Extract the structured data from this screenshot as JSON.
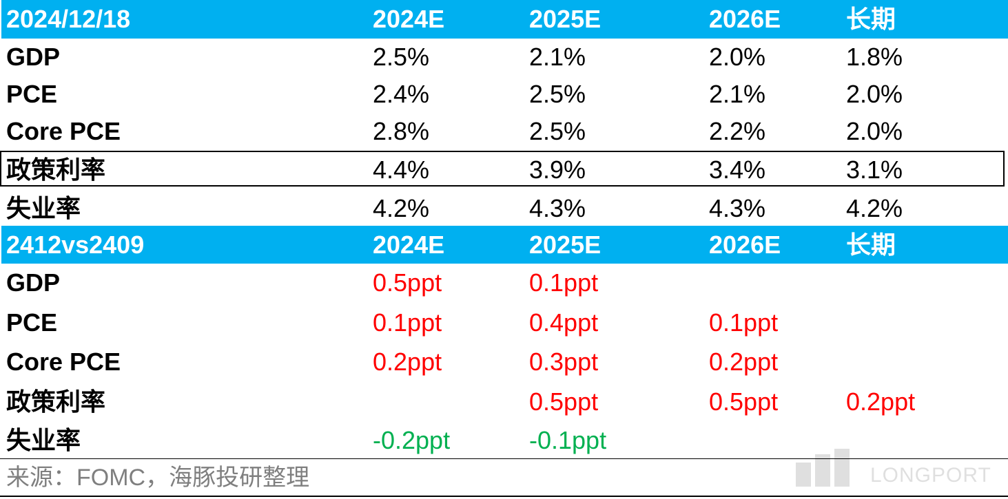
{
  "table1": {
    "header": [
      "2024/12/18",
      "2024E",
      "2025E",
      "2026E",
      "长期"
    ],
    "rows": [
      {
        "label": "GDP",
        "values": [
          "2.5%",
          "2.1%",
          "2.0%",
          "1.8%"
        ]
      },
      {
        "label": "PCE",
        "values": [
          "2.4%",
          "2.5%",
          "2.1%",
          "2.0%"
        ]
      },
      {
        "label": "Core PCE",
        "values": [
          "2.8%",
          "2.5%",
          "2.2%",
          "2.0%"
        ]
      },
      {
        "label": "政策利率",
        "values": [
          "4.4%",
          "3.9%",
          "3.4%",
          "3.1%"
        ]
      },
      {
        "label": "失业率",
        "values": [
          "4.2%",
          "4.3%",
          "4.3%",
          "4.2%"
        ]
      }
    ]
  },
  "table2": {
    "header": [
      "2412vs2409",
      "2024E",
      "2025E",
      "2026E",
      "长期"
    ],
    "rows": [
      {
        "label": "GDP",
        "values": [
          "0.5ppt",
          "0.1ppt",
          "",
          ""
        ]
      },
      {
        "label": "PCE",
        "values": [
          "0.1ppt",
          "0.4ppt",
          "0.1ppt",
          ""
        ]
      },
      {
        "label": "Core PCE",
        "values": [
          "0.2ppt",
          "0.3ppt",
          "0.2ppt",
          ""
        ]
      },
      {
        "label": "政策利率",
        "values": [
          "",
          "0.5ppt",
          "0.5ppt",
          "0.2ppt"
        ]
      },
      {
        "label": "失业率",
        "values": [
          "-0.2ppt",
          "-0.1ppt",
          "",
          ""
        ]
      }
    ]
  },
  "source": "来源：FOMC，海豚投研整理",
  "watermark": "LONGPORT",
  "colors": {
    "header_bg": "#00b0f0",
    "header_text": "#ffffff",
    "positive": "#ff0000",
    "negative": "#00b050",
    "source_text": "#7f7f7f"
  }
}
